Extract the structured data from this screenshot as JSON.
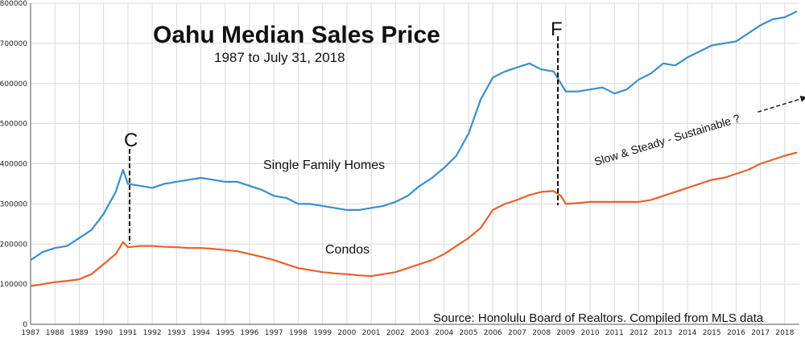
{
  "chart_data": {
    "type": "line",
    "title": "Oahu Median Sales Price",
    "subtitle": "1987 to July 31, 2018",
    "xlabel": "",
    "ylabel": "",
    "xlim": [
      1987,
      2018.6
    ],
    "ylim": [
      0,
      800000
    ],
    "grid": true,
    "x_ticks": [
      "1987",
      "1988",
      "1989",
      "1990",
      "1991",
      "1992",
      "1993",
      "1994",
      "1995",
      "1996",
      "1997",
      "1998",
      "1999",
      "2000",
      "2001",
      "2002",
      "2003",
      "2004",
      "2005",
      "2006",
      "2007",
      "2008",
      "2009",
      "2010",
      "2011",
      "2012",
      "2013",
      "2014",
      "2015",
      "2016",
      "2017",
      "2018"
    ],
    "y_ticks": [
      "0",
      "100000",
      "200000",
      "300000",
      "400000",
      "500000",
      "600000",
      "700000",
      "800000"
    ],
    "series": [
      {
        "name": "Single Family Homes",
        "color": "#3a8fc8",
        "x": [
          1987.0,
          1987.5,
          1988.0,
          1988.5,
          1989.0,
          1989.5,
          1990.0,
          1990.5,
          1990.8,
          1991.0,
          1991.5,
          1992.0,
          1992.5,
          1993.0,
          1993.5,
          1994.0,
          1994.5,
          1995.0,
          1995.5,
          1996.0,
          1996.5,
          1997.0,
          1997.5,
          1998.0,
          1998.5,
          1999.0,
          1999.5,
          2000.0,
          2000.5,
          2001.0,
          2001.5,
          2002.0,
          2002.5,
          2003.0,
          2003.5,
          2004.0,
          2004.5,
          2005.0,
          2005.5,
          2006.0,
          2006.5,
          2007.0,
          2007.5,
          2008.0,
          2008.5,
          2008.8,
          2009.0,
          2009.5,
          2010.0,
          2010.5,
          2011.0,
          2011.5,
          2012.0,
          2012.5,
          2013.0,
          2013.5,
          2014.0,
          2014.5,
          2015.0,
          2015.5,
          2016.0,
          2016.5,
          2017.0,
          2017.5,
          2018.0,
          2018.5
        ],
        "values": [
          160000,
          180000,
          190000,
          195000,
          215000,
          235000,
          275000,
          330000,
          385000,
          350000,
          345000,
          340000,
          350000,
          355000,
          360000,
          365000,
          360000,
          355000,
          355000,
          345000,
          335000,
          320000,
          315000,
          300000,
          300000,
          295000,
          290000,
          285000,
          285000,
          290000,
          295000,
          305000,
          320000,
          345000,
          365000,
          390000,
          420000,
          475000,
          560000,
          615000,
          630000,
          640000,
          650000,
          635000,
          630000,
          600000,
          580000,
          580000,
          585000,
          590000,
          575000,
          585000,
          610000,
          625000,
          650000,
          645000,
          665000,
          680000,
          695000,
          700000,
          705000,
          725000,
          745000,
          760000,
          765000,
          780000
        ]
      },
      {
        "name": "Condos",
        "color": "#e8612c",
        "x": [
          1987.0,
          1987.5,
          1988.0,
          1988.5,
          1989.0,
          1989.5,
          1990.0,
          1990.5,
          1990.8,
          1991.0,
          1991.5,
          1992.0,
          1992.5,
          1993.0,
          1993.5,
          1994.0,
          1994.5,
          1995.0,
          1995.5,
          1996.0,
          1996.5,
          1997.0,
          1997.5,
          1998.0,
          1998.5,
          1999.0,
          1999.5,
          2000.0,
          2000.5,
          2001.0,
          2001.5,
          2002.0,
          2002.5,
          2003.0,
          2003.5,
          2004.0,
          2004.5,
          2005.0,
          2005.5,
          2006.0,
          2006.5,
          2007.0,
          2007.5,
          2008.0,
          2008.5,
          2008.8,
          2009.0,
          2009.5,
          2010.0,
          2010.5,
          2011.0,
          2011.5,
          2012.0,
          2012.5,
          2013.0,
          2013.5,
          2014.0,
          2014.5,
          2015.0,
          2015.5,
          2016.0,
          2016.5,
          2017.0,
          2017.5,
          2018.0,
          2018.5
        ],
        "values": [
          95000,
          100000,
          105000,
          108000,
          112000,
          125000,
          150000,
          175000,
          205000,
          192000,
          195000,
          195000,
          193000,
          192000,
          190000,
          190000,
          188000,
          185000,
          182000,
          175000,
          168000,
          160000,
          150000,
          140000,
          135000,
          130000,
          127000,
          125000,
          122000,
          120000,
          125000,
          130000,
          140000,
          150000,
          160000,
          175000,
          195000,
          215000,
          240000,
          285000,
          300000,
          310000,
          322000,
          330000,
          332000,
          320000,
          300000,
          302000,
          305000,
          305000,
          305000,
          305000,
          305000,
          310000,
          320000,
          330000,
          340000,
          350000,
          360000,
          365000,
          375000,
          385000,
          400000,
          410000,
          420000,
          428000
        ]
      }
    ],
    "annotations": {
      "marker_c": "C",
      "marker_f": "F",
      "sfh_label": "Single Family Homes",
      "condo_label": "Condos",
      "trend_label": "Slow & Steady - Sustainable ?",
      "source": "Source: Honolulu Board of Realtors. Compiled from MLS data"
    }
  }
}
